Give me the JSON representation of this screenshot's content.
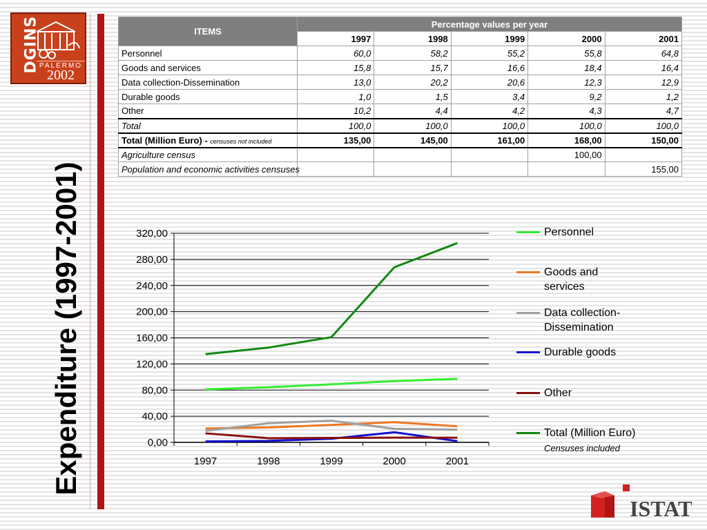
{
  "logo": {
    "brand": "DGINS",
    "city": "PALERMO",
    "year": "2002"
  },
  "title": "Expenditure (1997-2001)",
  "table": {
    "header_items": "ITEMS",
    "header_group": "Percentage values per year",
    "years": [
      "1997",
      "1998",
      "1999",
      "2000",
      "2001"
    ],
    "rows": [
      {
        "label": "Personnel",
        "values": [
          "60,0",
          "58,2",
          "55,2",
          "55,8",
          "64,8"
        ]
      },
      {
        "label": "Goods and services",
        "values": [
          "15,8",
          "15,7",
          "16,6",
          "18,4",
          "16,4"
        ]
      },
      {
        "label": "Data collection-Dissemination",
        "values": [
          "13,0",
          "20,2",
          "20,6",
          "12,3",
          "12,9"
        ]
      },
      {
        "label": "Durable goods",
        "values": [
          "1,0",
          "1,5",
          "3,4",
          "9,2",
          "1,2"
        ]
      },
      {
        "label": "Other",
        "values": [
          "10,2",
          "4,4",
          "4,2",
          "4,3",
          "4,7"
        ]
      }
    ],
    "total": {
      "label": "Total",
      "values": [
        "100,0",
        "100,0",
        "100,0",
        "100,0",
        "100,0"
      ]
    },
    "total_me": {
      "label": "Total (Million Euro) - ",
      "note": "censuses not included",
      "values": [
        "135,00",
        "145,00",
        "161,00",
        "168,00",
        "150,00"
      ]
    },
    "agri": {
      "label": "Agriculture census",
      "values": [
        "",
        "",
        "",
        "100,00",
        ""
      ]
    },
    "pop": {
      "label": "Population and economic activities censuses",
      "values": [
        "",
        "",
        "",
        "",
        "155,00"
      ]
    }
  },
  "legend": {
    "items": [
      {
        "label": "Personnel",
        "color": "#33ee33"
      },
      {
        "label": "Goods and services",
        "color": "#ee7722"
      },
      {
        "label": "Data collection-Dissemination",
        "color": "#a0a0a0"
      },
      {
        "label": "Durable goods",
        "color": "#1111cc"
      },
      {
        "label": "Other",
        "color": "#881111"
      },
      {
        "label": "Total (Million Euro)",
        "color": "#118811"
      }
    ],
    "note": "Censuses included"
  },
  "chart_data": {
    "type": "line",
    "x": [
      "1997",
      "1998",
      "1999",
      "2000",
      "2001"
    ],
    "ylim": [
      0,
      320
    ],
    "yticks": [
      "0,00",
      "40,00",
      "80,00",
      "120,00",
      "160,00",
      "200,00",
      "240,00",
      "280,00",
      "320,00"
    ],
    "grid": true,
    "legend_position": "right",
    "series": [
      {
        "name": "Personnel",
        "color": "#33ee33",
        "values": [
          81,
          84.4,
          88.9,
          93.7,
          97.2
        ]
      },
      {
        "name": "Goods and services",
        "color": "#ee7722",
        "values": [
          21.3,
          22.8,
          26.7,
          30.9,
          24.6
        ]
      },
      {
        "name": "Data collection-Dissemination",
        "color": "#a0a0a0",
        "values": [
          17.6,
          29.3,
          33.2,
          20.7,
          19.4
        ]
      },
      {
        "name": "Durable goods",
        "color": "#1111cc",
        "values": [
          1.4,
          2.2,
          5.5,
          15.5,
          1.8
        ]
      },
      {
        "name": "Other",
        "color": "#881111",
        "values": [
          13.8,
          6.4,
          6.8,
          7.2,
          7.1
        ]
      },
      {
        "name": "Total (Million Euro)",
        "color": "#118811",
        "values": [
          135,
          145,
          161,
          268,
          305
        ]
      }
    ]
  }
}
